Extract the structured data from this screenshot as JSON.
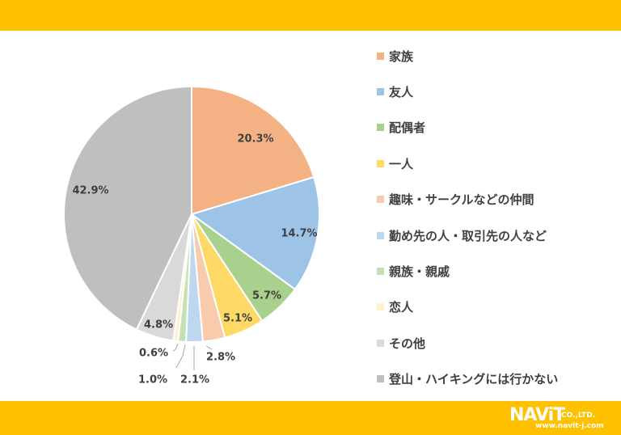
{
  "chart_data": {
    "type": "pie",
    "categories": [
      "家族",
      "友人",
      "配偶者",
      "一人",
      "趣味・サークルなどの仲間",
      "勤め先の人・取引先の人など",
      "親族・親戚",
      "恋人",
      "その他",
      "登山・ハイキングには行かない"
    ],
    "values": [
      20.3,
      14.7,
      5.7,
      5.1,
      2.8,
      2.1,
      1.0,
      0.6,
      4.8,
      42.9
    ],
    "data_labels": [
      "20.3%",
      "14.7%",
      "5.7%",
      "5.1%",
      "2.8%",
      "2.1%",
      "1.0%",
      "0.6%",
      "4.8%",
      "42.9%"
    ],
    "colors": [
      "#F4B183",
      "#9DC3E6",
      "#A9D18E",
      "#FFD966",
      "#F8CBAD",
      "#BDD7EE",
      "#C5E0B4",
      "#FFF2CC",
      "#D9D9D9",
      "#BFBFBF"
    ],
    "legend_position": "right",
    "start_angle": "top, clockwise"
  },
  "brand": {
    "logo_main": "NAViT",
    "logo_suffix": "CO.,LTD.",
    "url": "www.navit-j.com",
    "bar_color": "#FFC000"
  }
}
